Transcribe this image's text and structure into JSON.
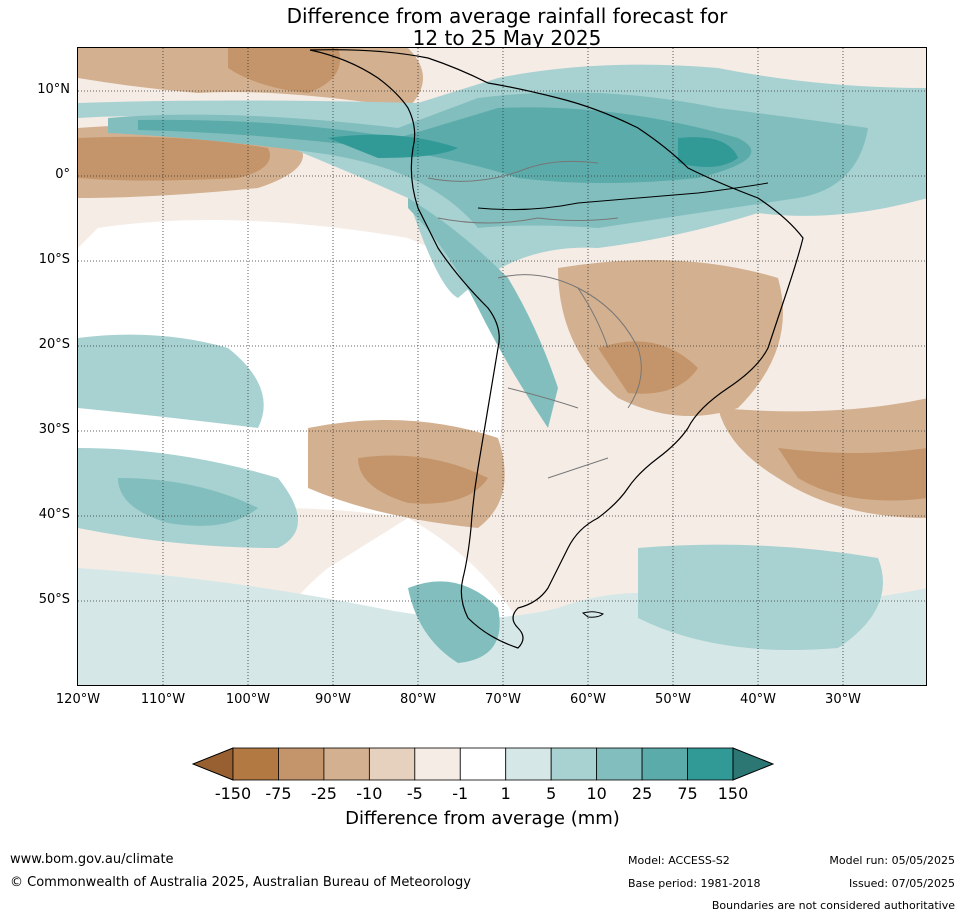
{
  "title_line1": "Difference from average rainfall forecast for",
  "title_line2": "12 to 25 May 2025",
  "lat_labels": [
    "10°N",
    "0°",
    "10°S",
    "20°S",
    "30°S",
    "40°S",
    "50°S"
  ],
  "lon_labels": [
    "120°W",
    "110°W",
    "100°W",
    "90°W",
    "80°W",
    "70°W",
    "60°W",
    "50°W",
    "40°W",
    "30°W"
  ],
  "colorbar": {
    "ticks": [
      "-150",
      "-75",
      "-25",
      "-10",
      "-5",
      "-1",
      "1",
      "5",
      "10",
      "25",
      "75",
      "150"
    ],
    "colors": [
      "#986031",
      "#b27a42",
      "#c4956a",
      "#d3b08f",
      "#e5d1bd",
      "#f5ece6",
      "#ffffff",
      "#d5e8e7",
      "#a8d1d1",
      "#82bebe",
      "#5aabaa",
      "#319a97",
      "#2c7674"
    ],
    "label": "Difference from average (mm)"
  },
  "footer": {
    "website": "www.bom.gov.au/climate",
    "copyright": "© Commonwealth of Australia 2025, Australian Bureau of Meteorology",
    "model": "Model: ACCESS-S2",
    "base_period": "Base period: 1981-2018",
    "model_run": "Model run: 05/05/2025",
    "issued": "Issued: 07/05/2025",
    "disclaimer": "Boundaries are not considered authoritative"
  }
}
